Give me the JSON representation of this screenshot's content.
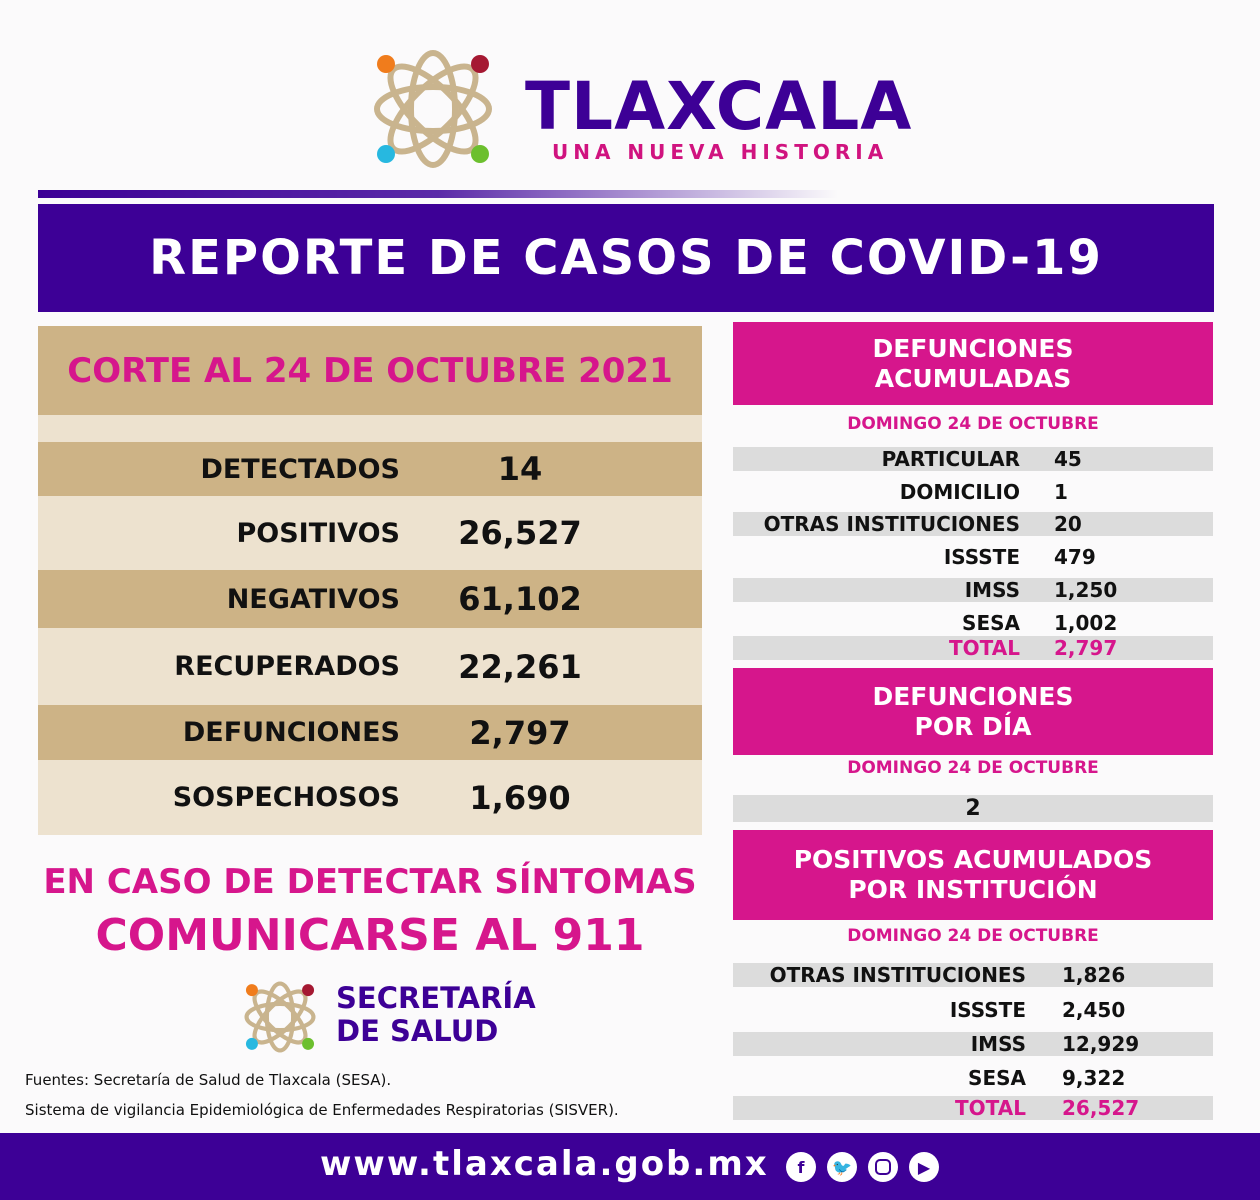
{
  "header": {
    "brand": "TLAXCALA",
    "tagline": "UNA NUEVA HISTORIA"
  },
  "banner": {
    "title": "REPORTE DE CASOS DE COVID-19"
  },
  "summary": {
    "corte": "CORTE AL 24 DE OCTUBRE 2021",
    "rows": [
      {
        "label": "DETECTADOS",
        "value": "14"
      },
      {
        "label": "POSITIVOS",
        "value": "26,527"
      },
      {
        "label": "NEGATIVOS",
        "value": "61,102"
      },
      {
        "label": "RECUPERADOS",
        "value": "22,261"
      },
      {
        "label": "DEFUNCIONES",
        "value": "2,797"
      },
      {
        "label": "SOSPECHOSOS",
        "value": "1,690"
      }
    ]
  },
  "defunciones_acumuladas": {
    "title_1": "DEFUNCIONES",
    "title_2": "ACUMULADAS",
    "date": "DOMINGO 24 DE OCTUBRE",
    "rows": [
      {
        "label": "PARTICULAR",
        "value": "45"
      },
      {
        "label": "DOMICILIO",
        "value": "1"
      },
      {
        "label": "OTRAS INSTITUCIONES",
        "value": "20"
      },
      {
        "label": "ISSSTE",
        "value": "479"
      },
      {
        "label": "IMSS",
        "value": "1,250"
      },
      {
        "label": "SESA",
        "value": "1,002"
      },
      {
        "label": "TOTAL",
        "value": "2,797"
      }
    ]
  },
  "defunciones_dia": {
    "title_1": "DEFUNCIONES",
    "title_2": "POR DÍA",
    "date": "DOMINGO 24 DE OCTUBRE",
    "value": "2"
  },
  "positivos_institucion": {
    "title_1": "POSITIVOS ACUMULADOS",
    "title_2": "POR INSTITUCIÓN",
    "date": "DOMINGO 24 DE OCTUBRE",
    "rows": [
      {
        "label": "OTRAS INSTITUCIONES",
        "value": "1,826"
      },
      {
        "label": "ISSSTE",
        "value": "2,450"
      },
      {
        "label": "IMSS",
        "value": "12,929"
      },
      {
        "label": "SESA",
        "value": "9,322"
      },
      {
        "label": "TOTAL",
        "value": "26,527"
      }
    ]
  },
  "cta": {
    "line1": "EN CASO DE DETECTAR SÍNTOMAS",
    "line2": "COMUNICARSE AL 911"
  },
  "secretaria": {
    "line1": "SECRETARÍA",
    "line2": "DE SALUD"
  },
  "sources": [
    "Fuentes:  Secretaría de Salud de Tlaxcala (SESA).",
    "Sistema de vigilancia Epidemiológica de Enfermedades Respiratorias (SISVER)."
  ],
  "footer": {
    "url": "www.tlaxcala.gob.mx",
    "social": [
      "facebook-icon",
      "twitter-icon",
      "instagram-icon",
      "youtube-icon"
    ]
  },
  "colors": {
    "purple": "#3d0096",
    "magenta": "#d6168c",
    "tan": "#cdb386",
    "light_tan": "#ede2cf"
  }
}
